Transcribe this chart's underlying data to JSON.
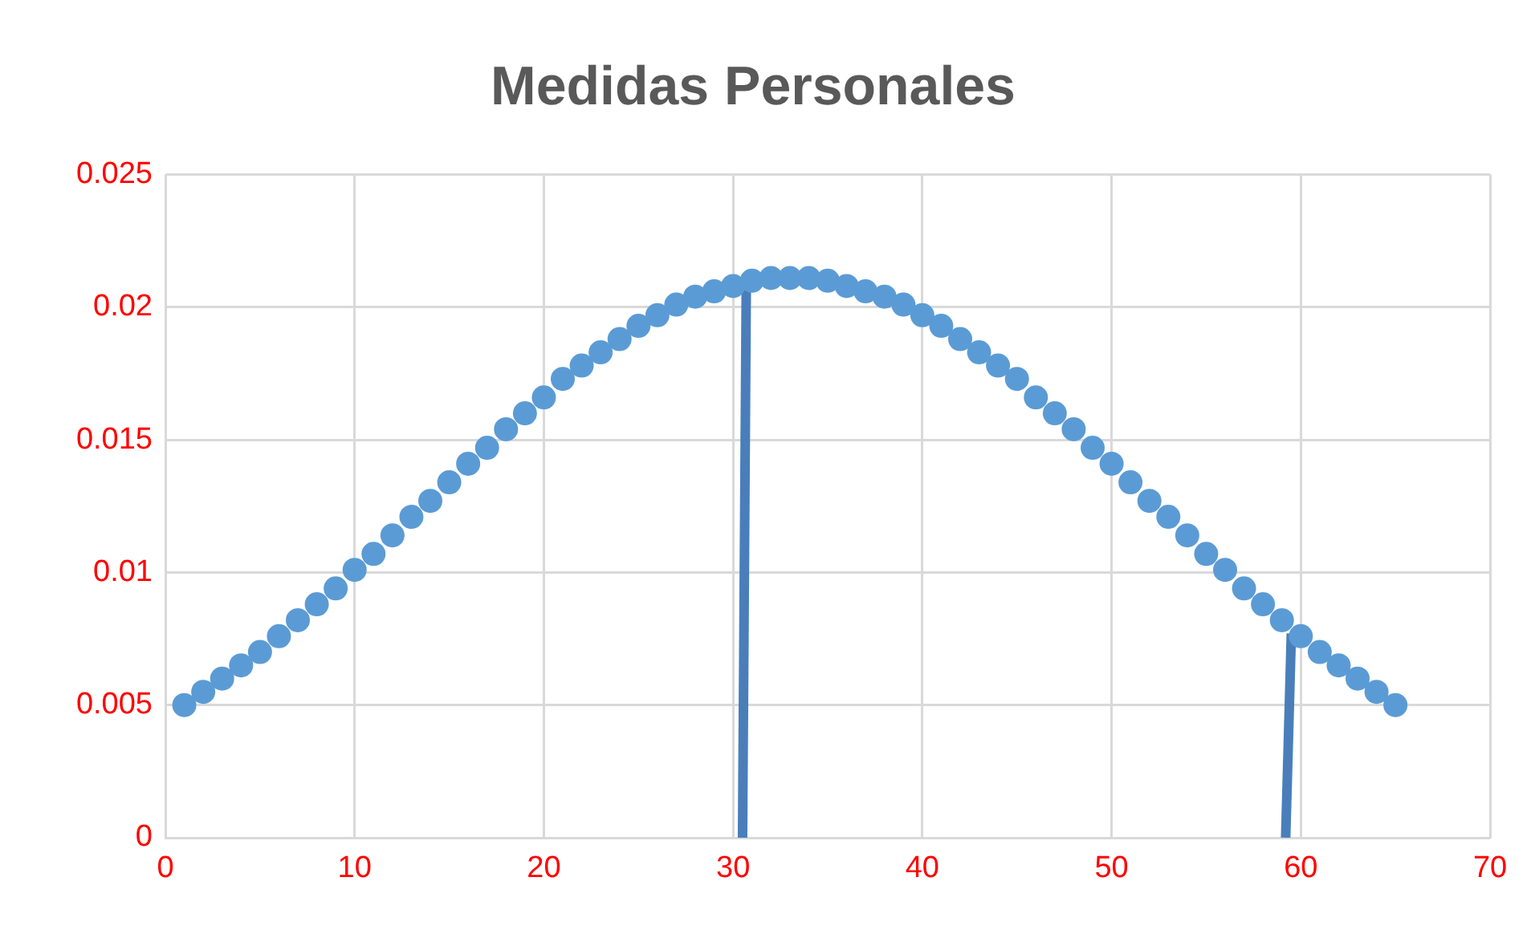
{
  "chart_data": {
    "type": "scatter",
    "title": "Medidas Personales",
    "series": [
      {
        "color": "#5b9bd5",
        "marker": "circle",
        "x": [
          1,
          2,
          3,
          4,
          5,
          6,
          7,
          8,
          9,
          10,
          11,
          12,
          13,
          14,
          15,
          16,
          17,
          18,
          19,
          20,
          21,
          22,
          23,
          24,
          25,
          26,
          27,
          28,
          29,
          30,
          31,
          32,
          33,
          34,
          35,
          36,
          37,
          38,
          39,
          40,
          41,
          42,
          43,
          44,
          45,
          46,
          47,
          48,
          49,
          50,
          51,
          52,
          53,
          54,
          55,
          56,
          57,
          58,
          59,
          60,
          61,
          62,
          63,
          64,
          65
        ],
        "values": [
          0.005,
          0.0055,
          0.006,
          0.0065,
          0.007,
          0.0076,
          0.0082,
          0.0088,
          0.0094,
          0.0101,
          0.0107,
          0.0114,
          0.0121,
          0.0127,
          0.0134,
          0.0141,
          0.0147,
          0.0154,
          0.016,
          0.0166,
          0.0173,
          0.0178,
          0.0183,
          0.0188,
          0.0193,
          0.0197,
          0.0201,
          0.0204,
          0.0206,
          0.0208,
          0.021,
          0.0211,
          0.0211,
          0.0211,
          0.021,
          0.0208,
          0.0206,
          0.0204,
          0.0201,
          0.0197,
          0.0193,
          0.0188,
          0.0183,
          0.0178,
          0.0173,
          0.0166,
          0.016,
          0.0154,
          0.0147,
          0.0141,
          0.0134,
          0.0127,
          0.0121,
          0.0114,
          0.0107,
          0.0101,
          0.0094,
          0.0088,
          0.0082,
          0.0076,
          0.007,
          0.0065,
          0.006,
          0.0055,
          0.005
        ]
      },
      {
        "type": "line",
        "color": "#4a7ebb",
        "marker": "none",
        "x": [
          30.5,
          30.7
        ],
        "values": [
          0,
          0.0212
        ]
      },
      {
        "type": "line",
        "color": "#4a7ebb",
        "marker": "none",
        "x": [
          59.2,
          59.5
        ],
        "values": [
          0,
          0.0077
        ]
      }
    ],
    "xlim": [
      0,
      70
    ],
    "xticks": [
      0,
      10,
      20,
      30,
      40,
      50,
      60,
      70
    ],
    "ylim": [
      0,
      0.025
    ],
    "yticks": [
      0,
      0.005,
      0.01,
      0.015,
      0.02,
      0.025
    ],
    "grid": true,
    "legend": false
  }
}
